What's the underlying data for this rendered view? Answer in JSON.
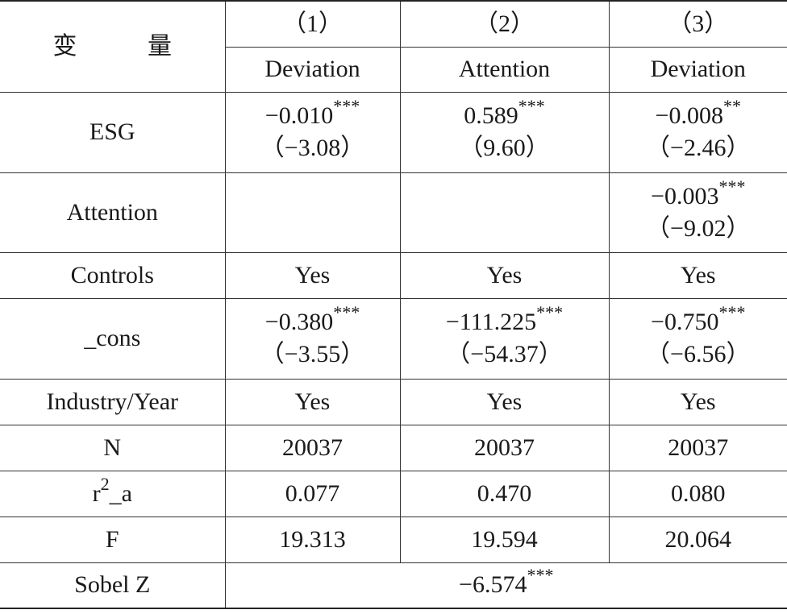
{
  "header": {
    "variable_label": "变 量",
    "columns": [
      {
        "number": "（1）",
        "name": "Deviation"
      },
      {
        "number": "（2）",
        "name": "Attention"
      },
      {
        "number": "（3）",
        "name": "Deviation"
      }
    ]
  },
  "rows": {
    "esg": {
      "label": "ESG",
      "c1": {
        "coef": "−0.010",
        "stars": "***",
        "t": "（−3.08）"
      },
      "c2": {
        "coef": "0.589",
        "stars": "***",
        "t": "（9.60）"
      },
      "c3": {
        "coef": "−0.008",
        "stars": "**",
        "t": "（−2.46）"
      }
    },
    "attention": {
      "label": "Attention",
      "c3": {
        "coef": "−0.003",
        "stars": "***",
        "t": "（−9.02）"
      }
    },
    "controls": {
      "label": "Controls",
      "values": [
        "Yes",
        "Yes",
        "Yes"
      ]
    },
    "cons": {
      "label": "_cons",
      "c1": {
        "coef": "−0.380",
        "stars": "***",
        "t": "（−3.55）"
      },
      "c2": {
        "coef": "−111.225",
        "stars": "***",
        "t": "（−54.37）"
      },
      "c3": {
        "coef": "−0.750",
        "stars": "***",
        "t": "（−6.56）"
      }
    },
    "industry_year": {
      "label": "Industry/Year",
      "values": [
        "Yes",
        "Yes",
        "Yes"
      ]
    },
    "n": {
      "label": "N",
      "values": [
        "20037",
        "20037",
        "20037"
      ]
    },
    "r2a": {
      "label_base": "r",
      "label_sup": "2",
      "label_tail": "_a",
      "values": [
        "0.077",
        "0.470",
        "0.080"
      ]
    },
    "f": {
      "label": "F",
      "values": [
        "19.313",
        "19.594",
        "20.064"
      ]
    },
    "sobel": {
      "label": "Sobel Z",
      "coef": "−6.574",
      "stars": "***"
    }
  }
}
